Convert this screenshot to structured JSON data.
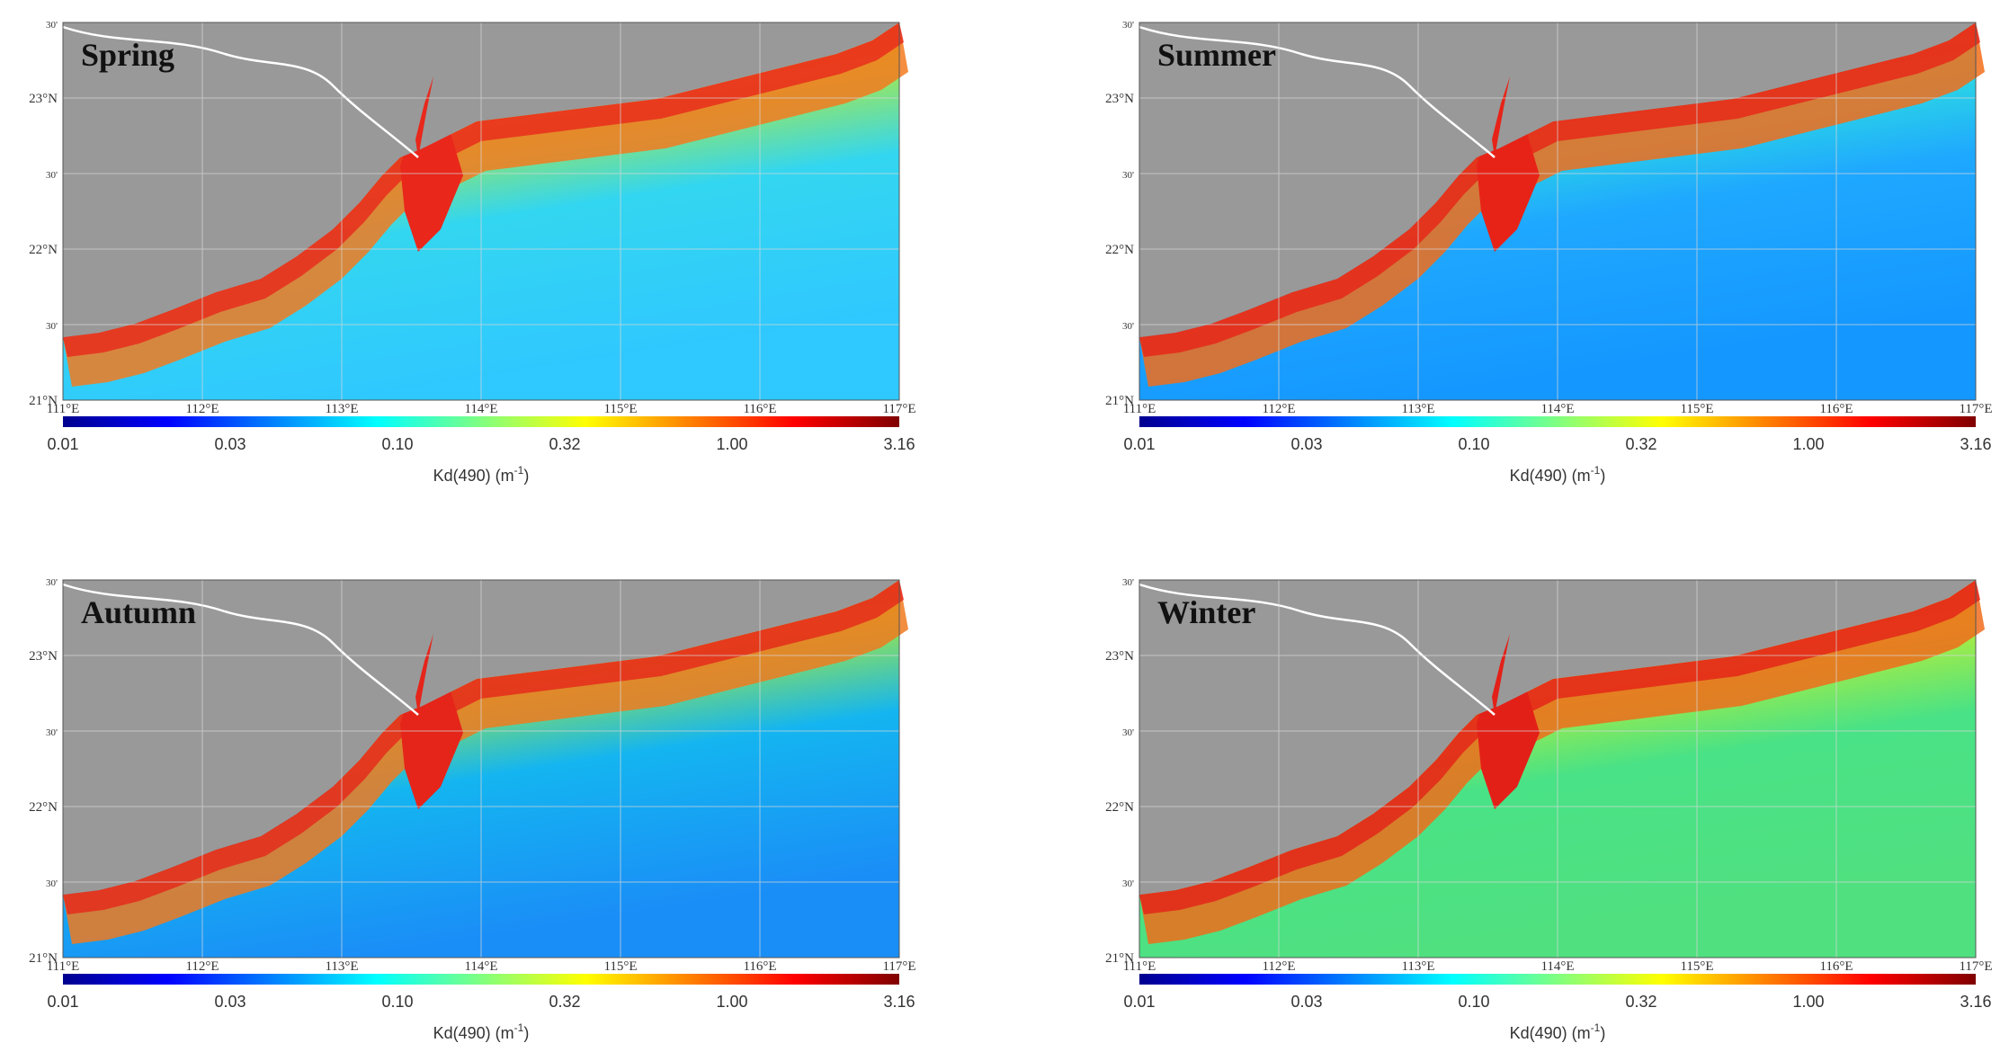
{
  "figure": {
    "panels": [
      {
        "id": "spring",
        "title": "Spring",
        "offshore_color": "#33d6f0",
        "shelf_color": "#b3ea3a",
        "nearshore_color": "#f37a1e",
        "estuary_color": "#e9271b",
        "open_sea_color": "#2fc8ff"
      },
      {
        "id": "summer",
        "title": "Summer",
        "offshore_color": "#1fa8ff",
        "shelf_color": "#2fe4dc",
        "nearshore_color": "#f26d1a",
        "estuary_color": "#e72317",
        "open_sea_color": "#1497ff"
      },
      {
        "id": "autumn",
        "title": "Autumn",
        "offshore_color": "#14b5f0",
        "shelf_color": "#a8ea3a",
        "nearshore_color": "#f07a1e",
        "estuary_color": "#e5251a",
        "open_sea_color": "#1a8ef7"
      },
      {
        "id": "winter",
        "title": "Winter",
        "offshore_color": "#49e286",
        "shelf_color": "#c2ef31",
        "nearshore_color": "#f06c1b",
        "estuary_color": "#e32018",
        "open_sea_color": "#50e080"
      }
    ],
    "land_color": "#999999",
    "lat_labels": [
      "30'",
      "23°N",
      "30'",
      "22°N",
      "30'",
      "21°N"
    ],
    "lon_labels": [
      "111°E",
      "112°E",
      "113°E",
      "114°E",
      "115°E",
      "116°E",
      "117°E"
    ],
    "colorbar": {
      "tick_labels": [
        "0.01",
        "0.03",
        "0.10",
        "0.32",
        "1.00",
        "3.16"
      ],
      "label": "Kd(490) (m",
      "label_sup": "-1",
      "label_close": ")",
      "colors": [
        "#00008f",
        "#0000ff",
        "#0080ff",
        "#00ffff",
        "#80ff80",
        "#ffff00",
        "#ff8000",
        "#ff0000",
        "#800000"
      ]
    }
  }
}
